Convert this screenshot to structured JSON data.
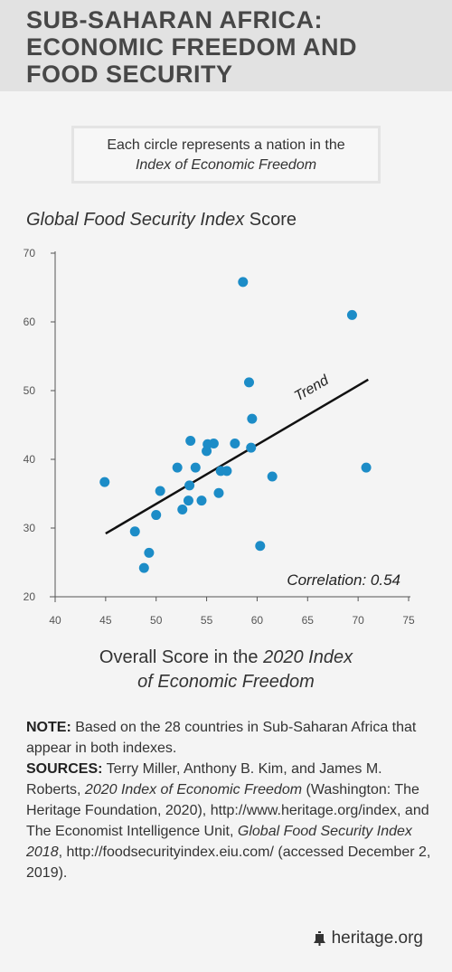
{
  "header": {
    "title_line1": "SUB-SAHARAN AFRICA:",
    "title_line2": "ECONOMIC FREEDOM AND",
    "title_line3": "FOOD SECURITY"
  },
  "legend_box": {
    "line1": "Each circle represents a nation in the",
    "line2": "Index of Economic Freedom"
  },
  "chart_data": {
    "type": "scatter",
    "title": "",
    "ylabel_italic": "Global Food Security Index",
    "ylabel_rest": " Score",
    "xlabel_line1_plain": "Overall Score in the ",
    "xlabel_line1_italic": "2020 Index",
    "xlabel_line2_italic": "of Economic Freedom",
    "xlim": [
      40,
      75
    ],
    "ylim": [
      20,
      70
    ],
    "xticks": [
      40,
      45,
      50,
      55,
      60,
      65,
      70,
      75
    ],
    "yticks": [
      20,
      30,
      40,
      50,
      60,
      70
    ],
    "grid": false,
    "points": [
      {
        "x": 44.9,
        "y": 36.7
      },
      {
        "x": 47.9,
        "y": 29.5
      },
      {
        "x": 48.8,
        "y": 24.2
      },
      {
        "x": 49.3,
        "y": 26.4
      },
      {
        "x": 50.0,
        "y": 31.9
      },
      {
        "x": 50.4,
        "y": 35.4
      },
      {
        "x": 52.1,
        "y": 38.8
      },
      {
        "x": 52.6,
        "y": 32.7
      },
      {
        "x": 53.2,
        "y": 34.0
      },
      {
        "x": 53.3,
        "y": 36.2
      },
      {
        "x": 53.4,
        "y": 42.7
      },
      {
        "x": 53.9,
        "y": 38.8
      },
      {
        "x": 54.5,
        "y": 34.0
      },
      {
        "x": 55.0,
        "y": 41.2
      },
      {
        "x": 55.1,
        "y": 42.2
      },
      {
        "x": 55.7,
        "y": 42.3
      },
      {
        "x": 56.2,
        "y": 35.1
      },
      {
        "x": 56.4,
        "y": 38.3
      },
      {
        "x": 57.0,
        "y": 38.3
      },
      {
        "x": 57.8,
        "y": 42.3
      },
      {
        "x": 58.6,
        "y": 65.8
      },
      {
        "x": 59.2,
        "y": 51.2
      },
      {
        "x": 59.4,
        "y": 41.7
      },
      {
        "x": 59.5,
        "y": 45.9
      },
      {
        "x": 60.3,
        "y": 27.4
      },
      {
        "x": 61.5,
        "y": 37.5
      },
      {
        "x": 69.4,
        "y": 61.0
      },
      {
        "x": 70.8,
        "y": 38.8
      }
    ],
    "trend": {
      "x1": 45.0,
      "y1": 29.2,
      "x2": 71.0,
      "y2": 51.6,
      "label": "Trend"
    },
    "annotation": "Correlation: 0.54",
    "colors": {
      "point": "#1c8cc7",
      "trend": "#111111",
      "axis": "#555555"
    }
  },
  "notes": {
    "note_label": "NOTE:",
    "note_text": " Based on the 28 countries in Sub-Saharan Africa that appear in both indexes.",
    "sources_label": "SOURCES:",
    "sources_text1": " Terry Miller, Anthony B. Kim, and James M. Roberts, ",
    "sources_italic1": "2020 Index of Economic Freedom",
    "sources_text2": " (Washington: The Heritage Foundation, 2020), http://www.heritage.org/index, and The Economist Intelligence Unit, ",
    "sources_italic2": "Global Food Security Index 2018",
    "sources_text3": ", http://foodsecurityindex.eiu.com/ (accessed December 2, 2019)."
  },
  "footer": {
    "logo_icon": "liberty-bell-icon",
    "brand": "heritage.org"
  }
}
